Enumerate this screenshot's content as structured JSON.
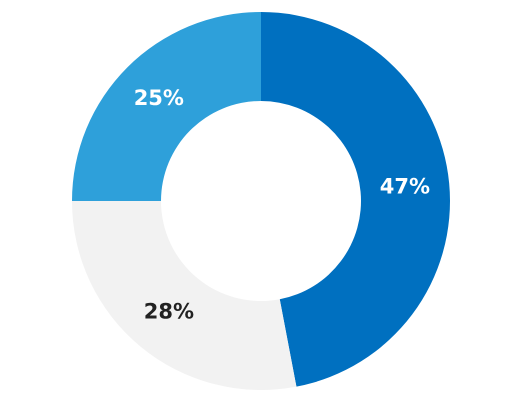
{
  "chart_data": {
    "type": "donut",
    "values": [
      47,
      28,
      25
    ],
    "value_labels": [
      "47%",
      "28%",
      "25%"
    ],
    "colors": [
      "#0070c0",
      "#f2f2f2",
      "#2ea0da"
    ]
  }
}
